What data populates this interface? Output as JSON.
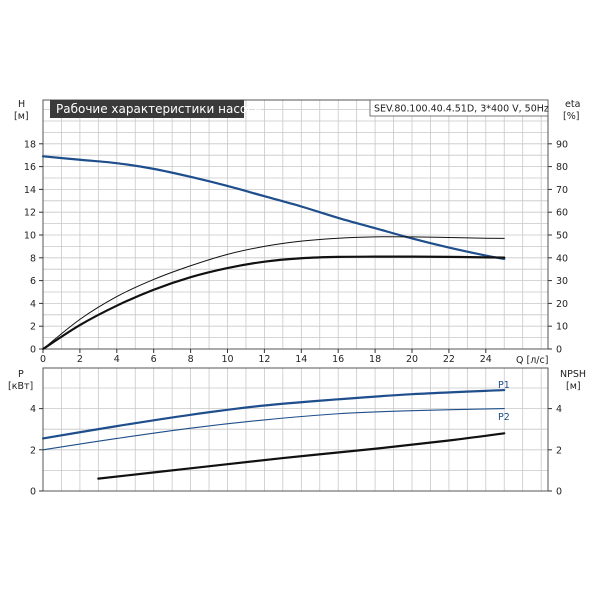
{
  "colors": {
    "blue": "#1f4e8c",
    "black": "#111111",
    "title_bg": "#3a3a3a",
    "grid": "#c8c8c8"
  },
  "chart_data": {
    "type": "line",
    "title": "Рабочие характеристики насоса",
    "info": "SEV.80.100.40.4.51D, 3*400 V, 50Hz",
    "x": {
      "label": "Q [л/с]",
      "range": [
        0,
        26
      ],
      "ticks": [
        0,
        2,
        4,
        6,
        8,
        10,
        12,
        14,
        16,
        18,
        20,
        22,
        24
      ]
    },
    "top_panel": {
      "y_left": {
        "label_line1": "H",
        "label_line2": "[м]",
        "range": [
          0,
          20
        ],
        "ticks": [
          0,
          2,
          4,
          6,
          8,
          10,
          12,
          14,
          16,
          18
        ]
      },
      "y_right": {
        "label_line1": "eta",
        "label_line2": "[%]",
        "range": [
          0,
          100
        ],
        "ticks": [
          0,
          10,
          20,
          30,
          40,
          50,
          60,
          70,
          80,
          90
        ]
      },
      "series": [
        {
          "axis": "left",
          "color": "blue",
          "width": 2.2,
          "points": [
            [
              0,
              16.9
            ],
            [
              2,
              16.6
            ],
            [
              4,
              16.3
            ],
            [
              6,
              15.8
            ],
            [
              8,
              15.1
            ],
            [
              10,
              14.3
            ],
            [
              12,
              13.4
            ],
            [
              14,
              12.5
            ],
            [
              16,
              11.5
            ],
            [
              18,
              10.6
            ],
            [
              20,
              9.7
            ],
            [
              22,
              8.9
            ],
            [
              24,
              8.2
            ],
            [
              25,
              7.9
            ]
          ]
        },
        {
          "axis": "right",
          "color": "black",
          "width": 1.0,
          "points": [
            [
              0,
              0
            ],
            [
              2,
              13
            ],
            [
              4,
              23
            ],
            [
              6,
              30.5
            ],
            [
              8,
              36.5
            ],
            [
              10,
              41.5
            ],
            [
              12,
              45
            ],
            [
              14,
              47.3
            ],
            [
              16,
              48.6
            ],
            [
              18,
              49.2
            ],
            [
              20,
              49.2
            ],
            [
              22,
              48.9
            ],
            [
              24,
              48.6
            ],
            [
              25,
              48.5
            ]
          ]
        },
        {
          "axis": "right",
          "color": "black",
          "width": 2.2,
          "points": [
            [
              0,
              0
            ],
            [
              2,
              10.5
            ],
            [
              4,
              19
            ],
            [
              6,
              26
            ],
            [
              8,
              31.5
            ],
            [
              10,
              35.5
            ],
            [
              12,
              38.3
            ],
            [
              14,
              39.8
            ],
            [
              16,
              40.4
            ],
            [
              18,
              40.5
            ],
            [
              20,
              40.5
            ],
            [
              22,
              40.4
            ],
            [
              24,
              40.2
            ],
            [
              25,
              40.1
            ]
          ]
        }
      ]
    },
    "bottom_panel": {
      "y_left": {
        "label_line1": "P",
        "label_line2": "[кВт]",
        "range": [
          0,
          6
        ],
        "ticks": [
          0,
          2,
          4
        ]
      },
      "y_right": {
        "label_line1": "NPSH",
        "label_line2": "[м]",
        "range": [
          0,
          6
        ],
        "ticks": [
          0,
          2,
          4
        ]
      },
      "series": [
        {
          "name": "P1",
          "axis": "left",
          "color": "blue",
          "width": 2.2,
          "points": [
            [
              0,
              2.55
            ],
            [
              4,
              3.15
            ],
            [
              8,
              3.7
            ],
            [
              12,
              4.15
            ],
            [
              16,
              4.45
            ],
            [
              20,
              4.7
            ],
            [
              25,
              4.9
            ]
          ]
        },
        {
          "name": "P2",
          "axis": "left",
          "color": "blue",
          "width": 1.1,
          "points": [
            [
              0,
              2.0
            ],
            [
              4,
              2.55
            ],
            [
              8,
              3.05
            ],
            [
              12,
              3.45
            ],
            [
              16,
              3.75
            ],
            [
              20,
              3.9
            ],
            [
              25,
              4.0
            ]
          ]
        },
        {
          "axis": "right",
          "color": "black",
          "width": 2.2,
          "points": [
            [
              3,
              0.6
            ],
            [
              8,
              1.1
            ],
            [
              13,
              1.6
            ],
            [
              18,
              2.05
            ],
            [
              22,
              2.45
            ],
            [
              25,
              2.8
            ]
          ]
        }
      ]
    }
  }
}
